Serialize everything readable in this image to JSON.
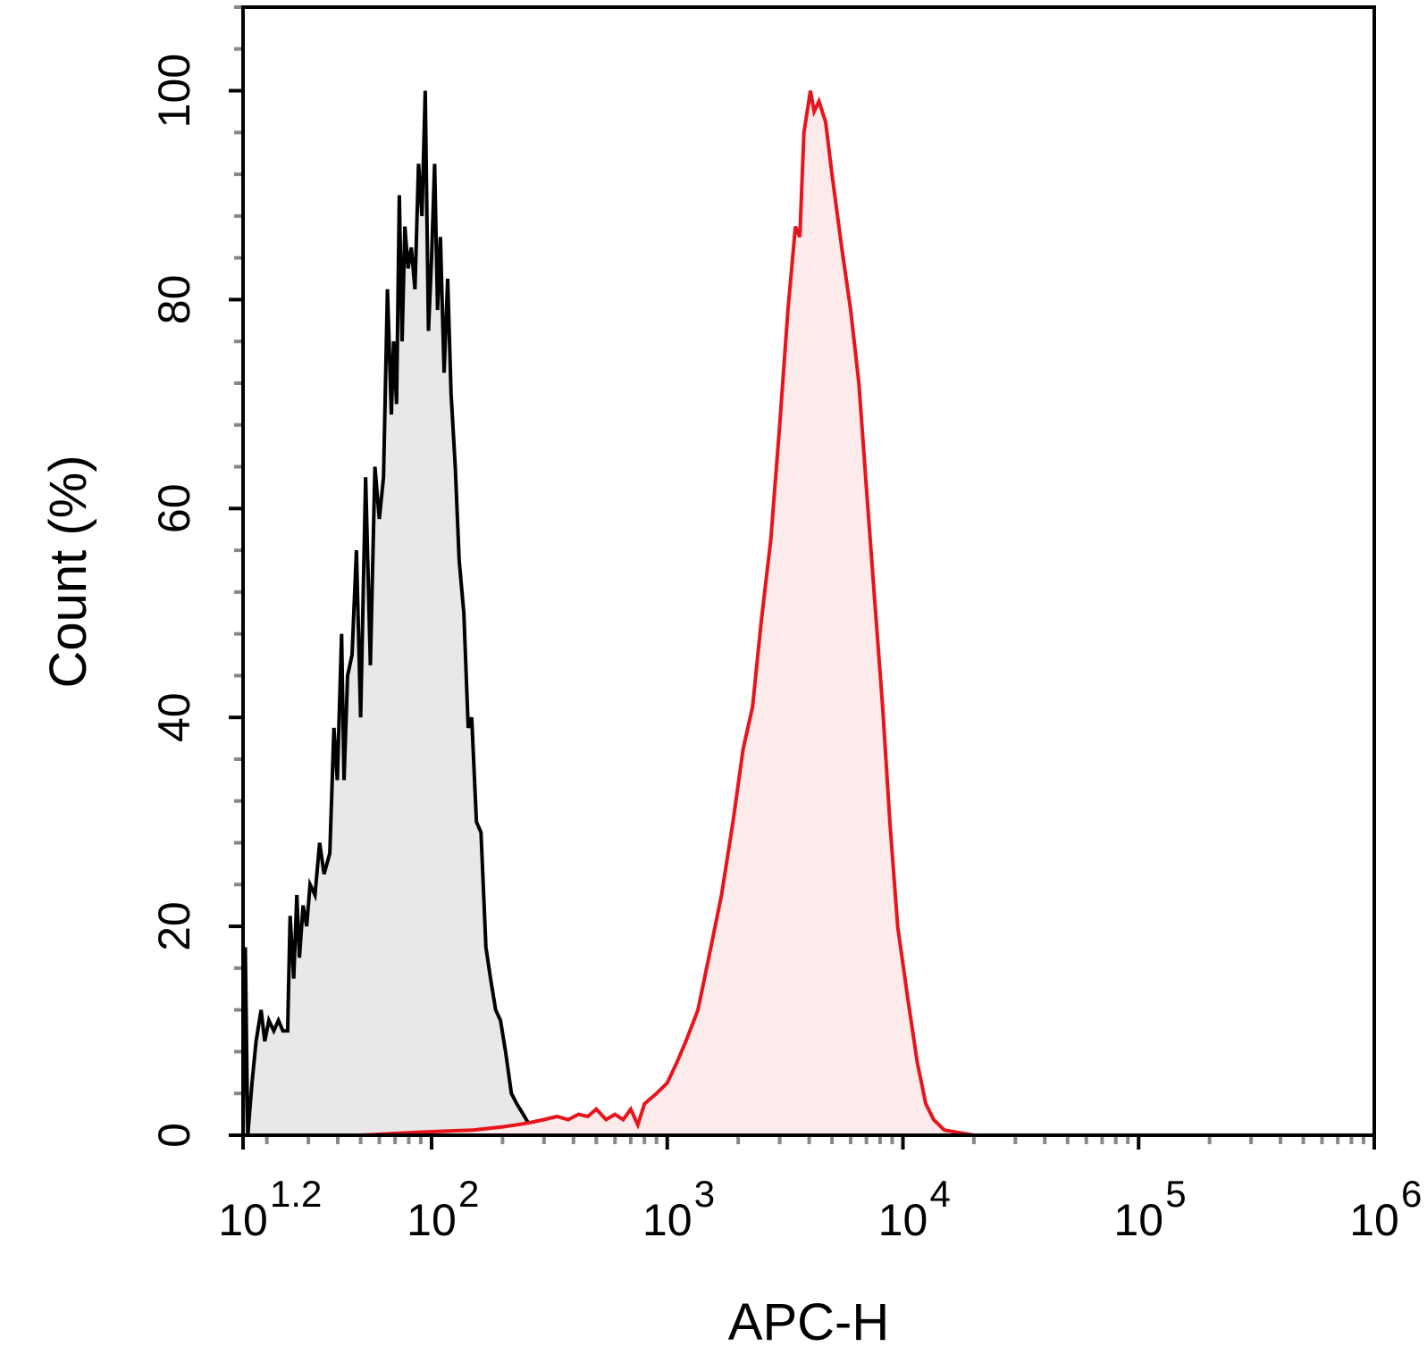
{
  "chart_data": {
    "type": "area",
    "xlabel": "APC-H",
    "ylabel": "Count (%)",
    "x_scale": "log10",
    "xlim": [
      15.85,
      1000000
    ],
    "ylim": [
      0,
      108
    ],
    "x_ticks": [
      {
        "value": 15.85,
        "base": "10",
        "exp": "1.2"
      },
      {
        "value": 100,
        "base": "10",
        "exp": "2"
      },
      {
        "value": 1000,
        "base": "10",
        "exp": "3"
      },
      {
        "value": 10000,
        "base": "10",
        "exp": "4"
      },
      {
        "value": 100000,
        "base": "10",
        "exp": "5"
      },
      {
        "value": 1000000,
        "base": "10",
        "exp": "6"
      }
    ],
    "y_ticks": [
      "0",
      "20",
      "40",
      "60",
      "80",
      "100"
    ],
    "series": [
      {
        "color": "#000000",
        "fill": "#e8e8e8",
        "points": [
          [
            15.85,
            0
          ],
          [
            16.2,
            18
          ],
          [
            16.6,
            0
          ],
          [
            17.3,
            5
          ],
          [
            18,
            9
          ],
          [
            18.9,
            12
          ],
          [
            19.6,
            9
          ],
          [
            20.4,
            11
          ],
          [
            21.4,
            10
          ],
          [
            22.4,
            11
          ],
          [
            23.4,
            10
          ],
          [
            24.5,
            10
          ],
          [
            25.1,
            21
          ],
          [
            26,
            15
          ],
          [
            26.8,
            23
          ],
          [
            27.5,
            17
          ],
          [
            28.5,
            22
          ],
          [
            29.5,
            20
          ],
          [
            30.5,
            24
          ],
          [
            32,
            23
          ],
          [
            33.5,
            28
          ],
          [
            35,
            25
          ],
          [
            37,
            27
          ],
          [
            38.5,
            39
          ],
          [
            39.8,
            34
          ],
          [
            41.5,
            48
          ],
          [
            42.5,
            34
          ],
          [
            44,
            44
          ],
          [
            46,
            46
          ],
          [
            48,
            56
          ],
          [
            50,
            40
          ],
          [
            52.5,
            63
          ],
          [
            55,
            45
          ],
          [
            57.5,
            64
          ],
          [
            60,
            59
          ],
          [
            62.5,
            63
          ],
          [
            65,
            81
          ],
          [
            67.5,
            69
          ],
          [
            69,
            76
          ],
          [
            71,
            70
          ],
          [
            73,
            90
          ],
          [
            75,
            76
          ],
          [
            77,
            87
          ],
          [
            79.5,
            83
          ],
          [
            82,
            85
          ],
          [
            85,
            81
          ],
          [
            88,
            93
          ],
          [
            91,
            88
          ],
          [
            94,
            100
          ],
          [
            97,
            77
          ],
          [
            100,
            84
          ],
          [
            103,
            93
          ],
          [
            106,
            79
          ],
          [
            109,
            86
          ],
          [
            113,
            73
          ],
          [
            117,
            82
          ],
          [
            121,
            71
          ],
          [
            126,
            64
          ],
          [
            131,
            55
          ],
          [
            137,
            50
          ],
          [
            143,
            39
          ],
          [
            148,
            40
          ],
          [
            155,
            30
          ],
          [
            162,
            29
          ],
          [
            170,
            18
          ],
          [
            178,
            15
          ],
          [
            187,
            12
          ],
          [
            196,
            11
          ],
          [
            206,
            8
          ],
          [
            218,
            4
          ],
          [
            230,
            3
          ],
          [
            245,
            2
          ],
          [
            260,
            1
          ],
          [
            275,
            1
          ],
          [
            290,
            0.3
          ],
          [
            320,
            0
          ],
          [
            500,
            0
          ]
        ]
      },
      {
        "color": "#e8141c",
        "fill": "#fdeaea",
        "points": [
          [
            15.85,
            0
          ],
          [
            50,
            0
          ],
          [
            90,
            0.3
          ],
          [
            150,
            0.5
          ],
          [
            200,
            0.8
          ],
          [
            230,
            1
          ],
          [
            260,
            1.2
          ],
          [
            300,
            1.5
          ],
          [
            340,
            1.8
          ],
          [
            380,
            1.5
          ],
          [
            420,
            2
          ],
          [
            460,
            1.8
          ],
          [
            500,
            2.5
          ],
          [
            550,
            1.5
          ],
          [
            600,
            2
          ],
          [
            650,
            1.5
          ],
          [
            700,
            2.5
          ],
          [
            750,
            1
          ],
          [
            800,
            3
          ],
          [
            900,
            4
          ],
          [
            1000,
            5
          ],
          [
            1100,
            7
          ],
          [
            1200,
            9
          ],
          [
            1350,
            12
          ],
          [
            1500,
            17
          ],
          [
            1700,
            23
          ],
          [
            1900,
            30
          ],
          [
            2100,
            37
          ],
          [
            2300,
            41
          ],
          [
            2500,
            49
          ],
          [
            2750,
            57
          ],
          [
            3000,
            68
          ],
          [
            3250,
            79
          ],
          [
            3500,
            87
          ],
          [
            3650,
            86
          ],
          [
            3800,
            96
          ],
          [
            4050,
            100
          ],
          [
            4200,
            98
          ],
          [
            4400,
            99
          ],
          [
            4700,
            97
          ],
          [
            5000,
            92
          ],
          [
            5500,
            85
          ],
          [
            6000,
            79
          ],
          [
            6500,
            72
          ],
          [
            7000,
            62
          ],
          [
            7600,
            51
          ],
          [
            8200,
            41
          ],
          [
            8800,
            30
          ],
          [
            9500,
            20
          ],
          [
            10500,
            13
          ],
          [
            11500,
            7
          ],
          [
            12500,
            3
          ],
          [
            13500,
            1.5
          ],
          [
            15000,
            0.5
          ],
          [
            20000,
            0
          ],
          [
            1000000,
            0
          ]
        ]
      }
    ]
  }
}
